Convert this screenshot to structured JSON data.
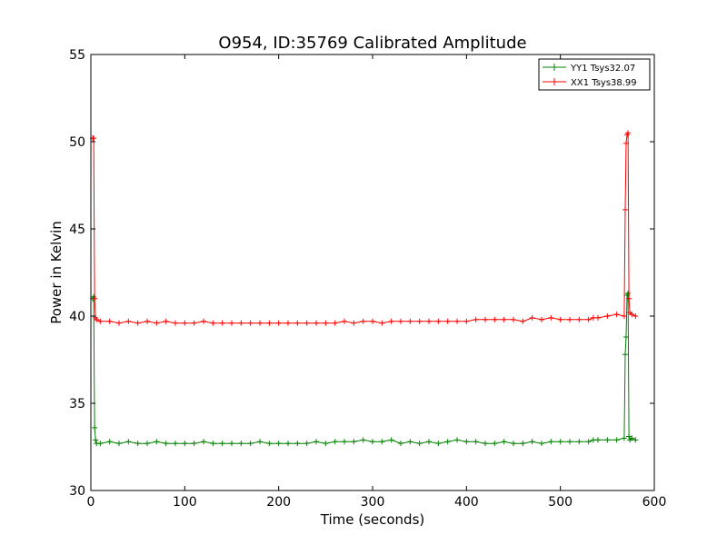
{
  "chart_data": {
    "type": "line",
    "title": "O954, ID:35769 Calibrated Amplitude",
    "xlabel": "Time (seconds)",
    "ylabel": "Power in Kelvin",
    "xlim": [
      0,
      600
    ],
    "ylim": [
      30,
      55
    ],
    "xticks": [
      "0",
      "100",
      "200",
      "300",
      "400",
      "500",
      "600"
    ],
    "yticks": [
      "30",
      "35",
      "40",
      "45",
      "50",
      "55"
    ],
    "grid": false,
    "legend_position": "top-right",
    "series": [
      {
        "name": "YY1 Tsys32.07",
        "color": "#008000",
        "marker": "+",
        "x": [
          2,
          3,
          4,
          5,
          6,
          10,
          20,
          30,
          40,
          50,
          60,
          70,
          80,
          90,
          100,
          110,
          120,
          130,
          140,
          150,
          160,
          170,
          180,
          190,
          200,
          210,
          220,
          230,
          240,
          250,
          260,
          270,
          280,
          290,
          300,
          310,
          320,
          330,
          340,
          350,
          360,
          370,
          380,
          390,
          400,
          410,
          420,
          430,
          440,
          450,
          460,
          470,
          480,
          490,
          500,
          510,
          520,
          530,
          535,
          540,
          550,
          560,
          568,
          569,
          570,
          571,
          572,
          573,
          574,
          576,
          580
        ],
        "y": [
          41.0,
          41.1,
          33.6,
          32.9,
          32.7,
          32.7,
          32.8,
          32.7,
          32.8,
          32.7,
          32.7,
          32.8,
          32.7,
          32.7,
          32.7,
          32.7,
          32.8,
          32.7,
          32.7,
          32.7,
          32.7,
          32.7,
          32.8,
          32.7,
          32.7,
          32.7,
          32.7,
          32.7,
          32.8,
          32.7,
          32.8,
          32.8,
          32.8,
          32.9,
          32.8,
          32.8,
          32.9,
          32.7,
          32.8,
          32.7,
          32.8,
          32.7,
          32.8,
          32.9,
          32.8,
          32.8,
          32.7,
          32.7,
          32.8,
          32.7,
          32.7,
          32.8,
          32.7,
          32.8,
          32.8,
          32.8,
          32.8,
          32.8,
          32.9,
          32.9,
          32.9,
          32.9,
          33.0,
          37.8,
          38.8,
          41.2,
          41.3,
          33.1,
          32.9,
          33.0,
          32.9
        ]
      },
      {
        "name": "XX1 Tsys38.99",
        "color": "#ff0000",
        "marker": "+",
        "x": [
          2,
          3,
          4,
          5,
          6,
          10,
          20,
          30,
          40,
          50,
          60,
          70,
          80,
          90,
          100,
          110,
          120,
          130,
          140,
          150,
          160,
          170,
          180,
          190,
          200,
          210,
          220,
          230,
          240,
          250,
          260,
          270,
          280,
          290,
          300,
          310,
          320,
          330,
          340,
          350,
          360,
          370,
          380,
          390,
          400,
          410,
          420,
          430,
          440,
          450,
          460,
          470,
          480,
          490,
          500,
          510,
          520,
          530,
          535,
          540,
          550,
          560,
          568,
          569,
          570,
          571,
          572,
          573,
          574,
          576,
          580
        ],
        "y": [
          50.2,
          50.2,
          41.0,
          39.9,
          39.8,
          39.7,
          39.7,
          39.6,
          39.7,
          39.6,
          39.7,
          39.6,
          39.7,
          39.6,
          39.6,
          39.6,
          39.7,
          39.6,
          39.6,
          39.6,
          39.6,
          39.6,
          39.6,
          39.6,
          39.6,
          39.6,
          39.6,
          39.6,
          39.6,
          39.6,
          39.6,
          39.7,
          39.6,
          39.7,
          39.7,
          39.6,
          39.7,
          39.7,
          39.7,
          39.7,
          39.7,
          39.7,
          39.7,
          39.7,
          39.7,
          39.8,
          39.8,
          39.8,
          39.8,
          39.8,
          39.7,
          39.9,
          39.8,
          39.9,
          39.8,
          39.8,
          39.8,
          39.8,
          39.9,
          39.9,
          40.0,
          40.1,
          40.0,
          46.1,
          49.9,
          50.4,
          50.5,
          41.0,
          40.2,
          40.1,
          40.0
        ]
      }
    ]
  }
}
